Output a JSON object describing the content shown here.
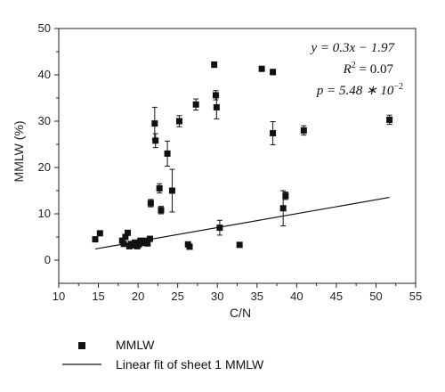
{
  "chart_data": {
    "type": "scatter",
    "xlabel": "C/N",
    "ylabel": "MMLW (%)",
    "xlim": [
      10,
      55
    ],
    "ylim": [
      -5,
      50
    ],
    "xticks": [
      "10",
      "15",
      "20",
      "25",
      "30",
      "35",
      "40",
      "45",
      "50",
      "55"
    ],
    "yticks": [
      "0",
      "10",
      "20",
      "30",
      "40",
      "50"
    ],
    "series": [
      {
        "name": "MMLW",
        "marker": "square",
        "points": [
          {
            "x": 14.6,
            "y": 4.5
          },
          {
            "x": 15.2,
            "y": 5.8
          },
          {
            "x": 18.0,
            "y": 4.2
          },
          {
            "x": 18.2,
            "y": 3.5
          },
          {
            "x": 18.4,
            "y": 5.0
          },
          {
            "x": 18.7,
            "y": 5.9
          },
          {
            "x": 18.9,
            "y": 3.0
          },
          {
            "x": 19.1,
            "y": 3.5
          },
          {
            "x": 19.4,
            "y": 3.2
          },
          {
            "x": 19.6,
            "y": 3.8
          },
          {
            "x": 19.9,
            "y": 3.0
          },
          {
            "x": 20.1,
            "y": 3.4
          },
          {
            "x": 20.3,
            "y": 4.2
          },
          {
            "x": 20.6,
            "y": 3.7
          },
          {
            "x": 20.9,
            "y": 4.2
          },
          {
            "x": 21.2,
            "y": 3.6
          },
          {
            "x": 21.5,
            "y": 4.6
          },
          {
            "x": 21.6,
            "y": 12.3,
            "err": 0.8
          },
          {
            "x": 22.1,
            "y": 29.5,
            "err": 3.5
          },
          {
            "x": 22.2,
            "y": 25.8,
            "err": 1.5
          },
          {
            "x": 22.7,
            "y": 15.5,
            "err": 1.0
          },
          {
            "x": 22.9,
            "y": 10.8,
            "err": 0.8
          },
          {
            "x": 23.7,
            "y": 23.0,
            "err": 2.7
          },
          {
            "x": 24.3,
            "y": 15.0,
            "err": 4.6
          },
          {
            "x": 25.2,
            "y": 30.0,
            "err": 1.2
          },
          {
            "x": 26.3,
            "y": 3.4
          },
          {
            "x": 26.5,
            "y": 2.9
          },
          {
            "x": 27.3,
            "y": 33.6,
            "err": 1.2
          },
          {
            "x": 29.6,
            "y": 42.2,
            "err": 0.6
          },
          {
            "x": 29.8,
            "y": 35.6,
            "err": 1.0
          },
          {
            "x": 29.9,
            "y": 33.0,
            "err": 2.5
          },
          {
            "x": 30.3,
            "y": 7.0,
            "err": 1.6
          },
          {
            "x": 32.8,
            "y": 3.3
          },
          {
            "x": 35.6,
            "y": 41.3
          },
          {
            "x": 37.0,
            "y": 40.6,
            "err": 0.6
          },
          {
            "x": 37.0,
            "y": 27.4,
            "err": 2.5
          },
          {
            "x": 38.3,
            "y": 11.2,
            "err": 3.8
          },
          {
            "x": 38.6,
            "y": 13.9,
            "err": 0.8
          },
          {
            "x": 40.9,
            "y": 28.0,
            "err": 1.0
          },
          {
            "x": 51.7,
            "y": 30.3,
            "err": 1.0
          }
        ]
      },
      {
        "name": "Linear fit of sheet 1 MMLW",
        "type": "line",
        "points": [
          {
            "x": 14.6,
            "y": 2.41
          },
          {
            "x": 51.7,
            "y": 13.54
          }
        ]
      }
    ],
    "annotation": {
      "line1": "y = 0.3x − 1.97",
      "r2_prefix": "R",
      "r2_exp": "2",
      "r2_value": " = 0.07",
      "p_text": "p = 5.48 ∗ 10",
      "p_exp": "−2"
    },
    "legend_position": "bottom-left"
  }
}
